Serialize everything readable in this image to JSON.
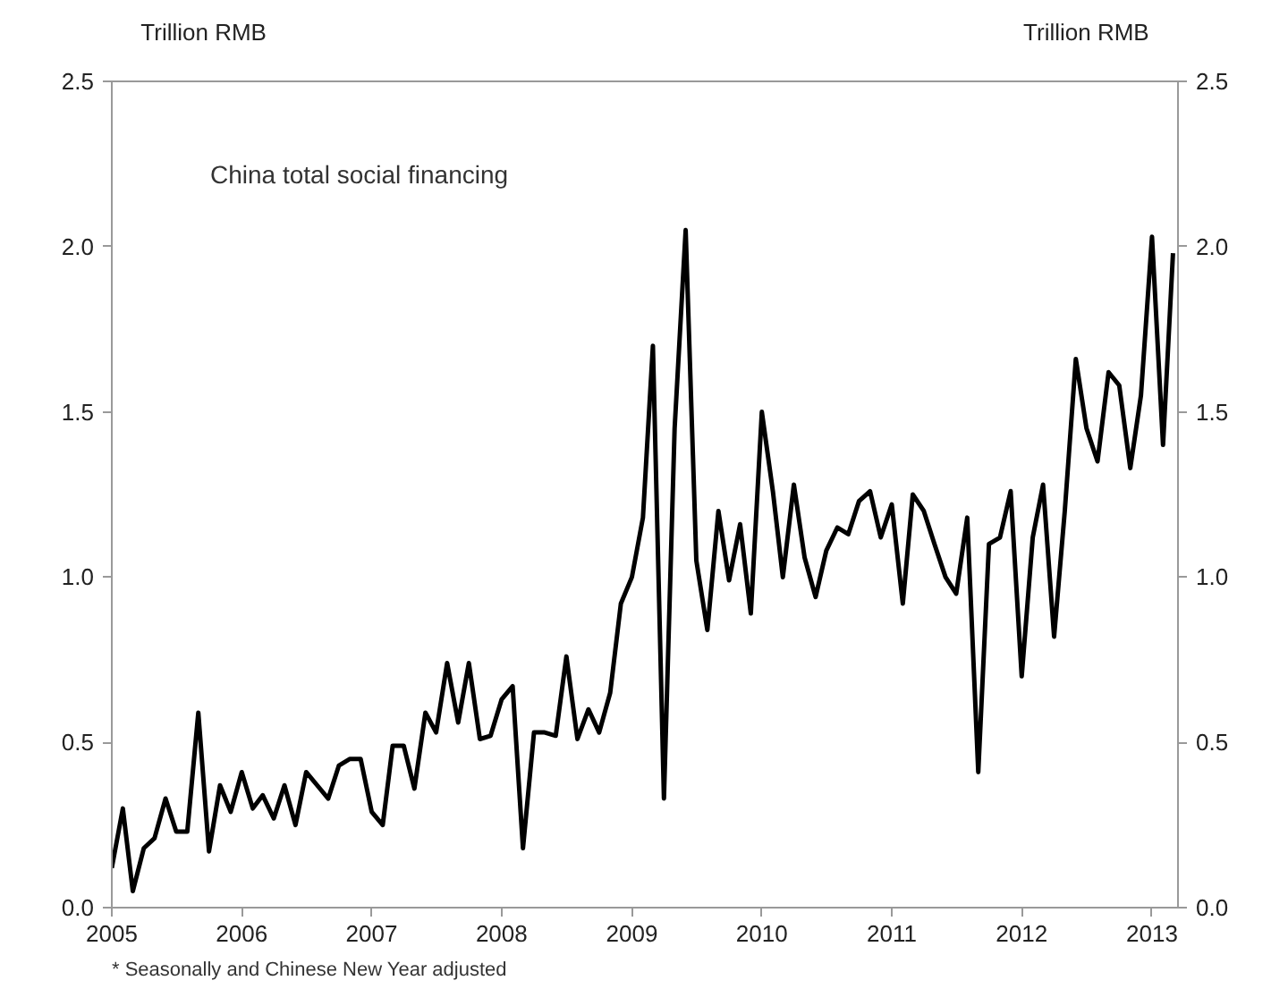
{
  "chart_data": {
    "type": "line",
    "title": "China total social financing",
    "ylabel": "Trillion RMB",
    "y2label": "Trillion RMB",
    "annotations": [
      "* Seasonally and Chinese New Year adjusted"
    ],
    "x": [
      "2005-01",
      "2005-02",
      "2005-03",
      "2005-04",
      "2005-05",
      "2005-06",
      "2005-07",
      "2005-08",
      "2005-09",
      "2005-10",
      "2005-11",
      "2005-12",
      "2006-01",
      "2006-02",
      "2006-03",
      "2006-04",
      "2006-05",
      "2006-06",
      "2006-07",
      "2006-08",
      "2006-09",
      "2006-10",
      "2006-11",
      "2006-12",
      "2007-01",
      "2007-02",
      "2007-03",
      "2007-04",
      "2007-05",
      "2007-06",
      "2007-07",
      "2007-08",
      "2007-09",
      "2007-10",
      "2007-11",
      "2007-12",
      "2008-01",
      "2008-02",
      "2008-03",
      "2008-04",
      "2008-05",
      "2008-06",
      "2008-07",
      "2008-08",
      "2008-09",
      "2008-10",
      "2008-11",
      "2008-12",
      "2009-01",
      "2009-02",
      "2009-03",
      "2009-04",
      "2009-05",
      "2009-06",
      "2009-07",
      "2009-08",
      "2009-09",
      "2009-10",
      "2009-11",
      "2009-12",
      "2010-01",
      "2010-02",
      "2010-03",
      "2010-04",
      "2010-05",
      "2010-06",
      "2010-07",
      "2010-08",
      "2010-09",
      "2010-10",
      "2010-11",
      "2010-12",
      "2011-01",
      "2011-02",
      "2011-03",
      "2011-04",
      "2011-05",
      "2011-06",
      "2011-07",
      "2011-08",
      "2011-09",
      "2011-10",
      "2011-11",
      "2011-12",
      "2012-01",
      "2012-02",
      "2012-03",
      "2012-04",
      "2012-05",
      "2012-06",
      "2012-07",
      "2012-08",
      "2012-09",
      "2012-10",
      "2012-11",
      "2012-12",
      "2013-01",
      "2013-02",
      "2013-03"
    ],
    "series": [
      {
        "color": "#000000",
        "values": [
          0.12,
          0.3,
          0.05,
          0.18,
          0.21,
          0.33,
          0.23,
          0.23,
          0.59,
          0.17,
          0.37,
          0.29,
          0.41,
          0.3,
          0.34,
          0.27,
          0.37,
          0.25,
          0.41,
          0.37,
          0.33,
          0.43,
          0.45,
          0.45,
          0.29,
          0.25,
          0.49,
          0.49,
          0.36,
          0.59,
          0.53,
          0.74,
          0.56,
          0.74,
          0.51,
          0.52,
          0.63,
          0.67,
          0.18,
          0.53,
          0.53,
          0.52,
          0.76,
          0.51,
          0.6,
          0.53,
          0.65,
          0.92,
          1.0,
          1.18,
          1.7,
          0.33,
          1.45,
          2.05,
          1.05,
          0.84,
          1.2,
          0.99,
          1.16,
          0.89,
          1.5,
          1.26,
          1.0,
          1.28,
          1.06,
          0.94,
          1.08,
          1.15,
          1.13,
          1.23,
          1.26,
          1.12,
          1.22,
          0.92,
          1.25,
          1.2,
          1.1,
          1.0,
          0.95,
          1.18,
          0.41,
          1.1,
          1.12,
          1.26,
          0.7,
          1.12,
          1.28,
          0.82,
          1.2,
          1.66,
          1.45,
          1.35,
          1.62,
          1.58,
          1.33,
          1.55,
          2.03,
          1.4,
          1.98
        ]
      }
    ],
    "xlim": [
      "2005-01-01",
      "2013-03-15"
    ],
    "xticks": [
      "2005",
      "2006",
      "2007",
      "2008",
      "2009",
      "2010",
      "2011",
      "2012",
      "2013"
    ],
    "ylim": [
      0,
      2.5
    ],
    "yticks": [
      {
        "value": 0,
        "label": "0.0"
      },
      {
        "value": 0.5,
        "label": "0.5"
      },
      {
        "value": 1,
        "label": "1.0"
      },
      {
        "value": 1.5,
        "label": "1.5"
      },
      {
        "value": 2,
        "label": "2.0"
      },
      {
        "value": 2.5,
        "label": "2.5"
      }
    ],
    "y2lim": [
      0,
      2.5
    ],
    "y2ticks": [
      {
        "value": 0,
        "label": "0.0"
      },
      {
        "value": 0.5,
        "label": "0.5"
      },
      {
        "value": 1,
        "label": "1.0"
      },
      {
        "value": 1.5,
        "label": "1.5"
      },
      {
        "value": 2,
        "label": "2.0"
      },
      {
        "value": 2.5,
        "label": "2.5"
      }
    ],
    "grid": false,
    "line_style": "solid",
    "marker": "none"
  }
}
